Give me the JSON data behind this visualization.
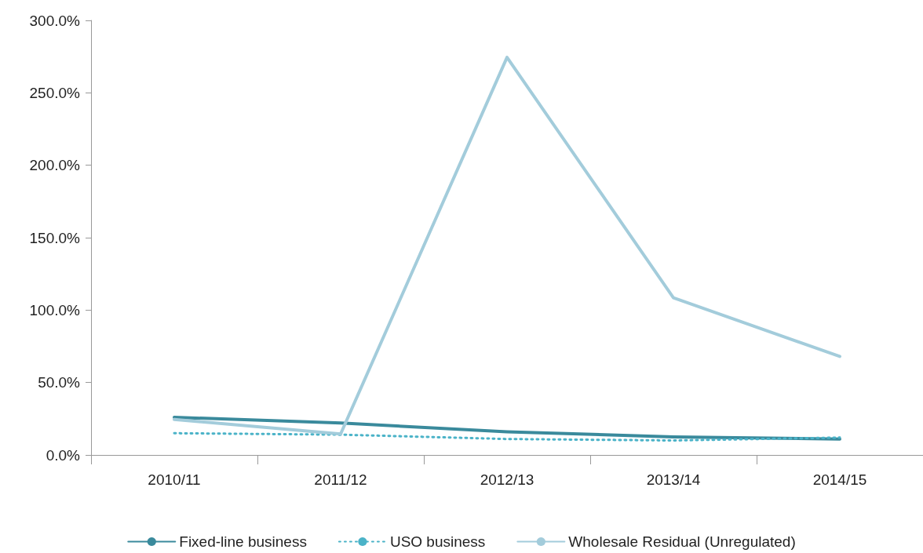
{
  "chart_data": {
    "type": "line",
    "categories": [
      "2010/11",
      "2011/12",
      "2012/13",
      "2013/14",
      "2014/15"
    ],
    "series": [
      {
        "name": "Fixed-line business",
        "color": "#3a8a9c",
        "line_style": "solid",
        "values": [
          26,
          22,
          16,
          12.5,
          11
        ]
      },
      {
        "name": "USO business",
        "color": "#4bb3c8",
        "line_style": "dotted",
        "values": [
          15,
          14,
          11,
          10,
          12
        ]
      },
      {
        "name": "Wholesale Residual (Unregulated)",
        "color": "#a3ccdb",
        "line_style": "solid",
        "values": [
          24.5,
          14.5,
          274.5,
          108.5,
          68
        ]
      }
    ],
    "ylim": [
      0,
      300
    ],
    "yticks": [
      {
        "value": 0,
        "label": "0.0%"
      },
      {
        "value": 50,
        "label": "50.0%"
      },
      {
        "value": 100,
        "label": "100.0%"
      },
      {
        "value": 150,
        "label": "150.0%"
      },
      {
        "value": 200,
        "label": "200.0%"
      },
      {
        "value": 250,
        "label": "250.0%"
      },
      {
        "value": 300,
        "label": "300.0%"
      }
    ],
    "grid": false,
    "legend": "bottom",
    "marker": "none"
  }
}
